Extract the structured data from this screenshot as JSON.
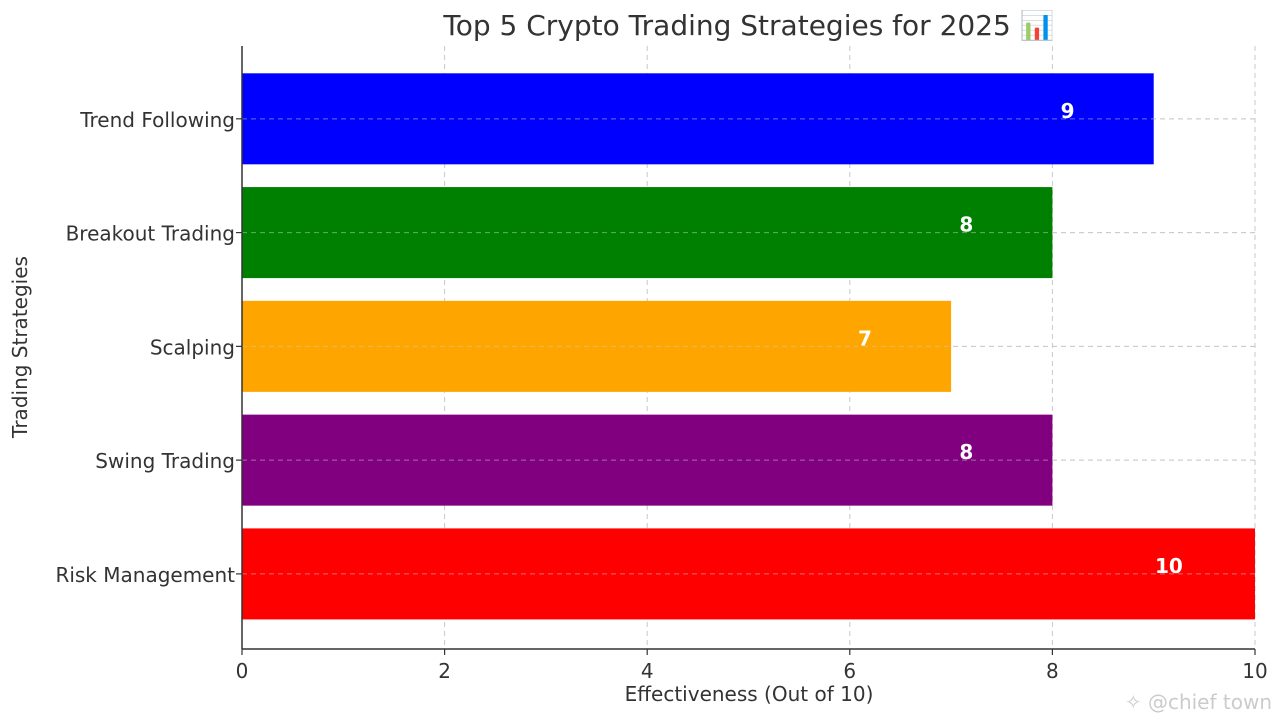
{
  "chart_data": {
    "type": "bar",
    "orientation": "horizontal",
    "title": "Top 5 Crypto Trading Strategies for 2025 📊",
    "xlabel": "Effectiveness (Out of 10)",
    "ylabel": "Trading Strategies",
    "categories": [
      "Trend Following",
      "Breakout Trading",
      "Scalping",
      "Swing Trading",
      "Risk Management"
    ],
    "values": [
      9,
      8,
      7,
      8,
      10
    ],
    "colors": [
      "#0000ff",
      "#008000",
      "#ffa500",
      "#800080",
      "#ff0000"
    ],
    "xlim": [
      0,
      10
    ],
    "xticks": [
      "0",
      "2",
      "4",
      "6",
      "8",
      "10"
    ],
    "grid": true,
    "data_labels": true
  },
  "watermark": {
    "icon": "wechat-icon",
    "text": "@chief town"
  }
}
